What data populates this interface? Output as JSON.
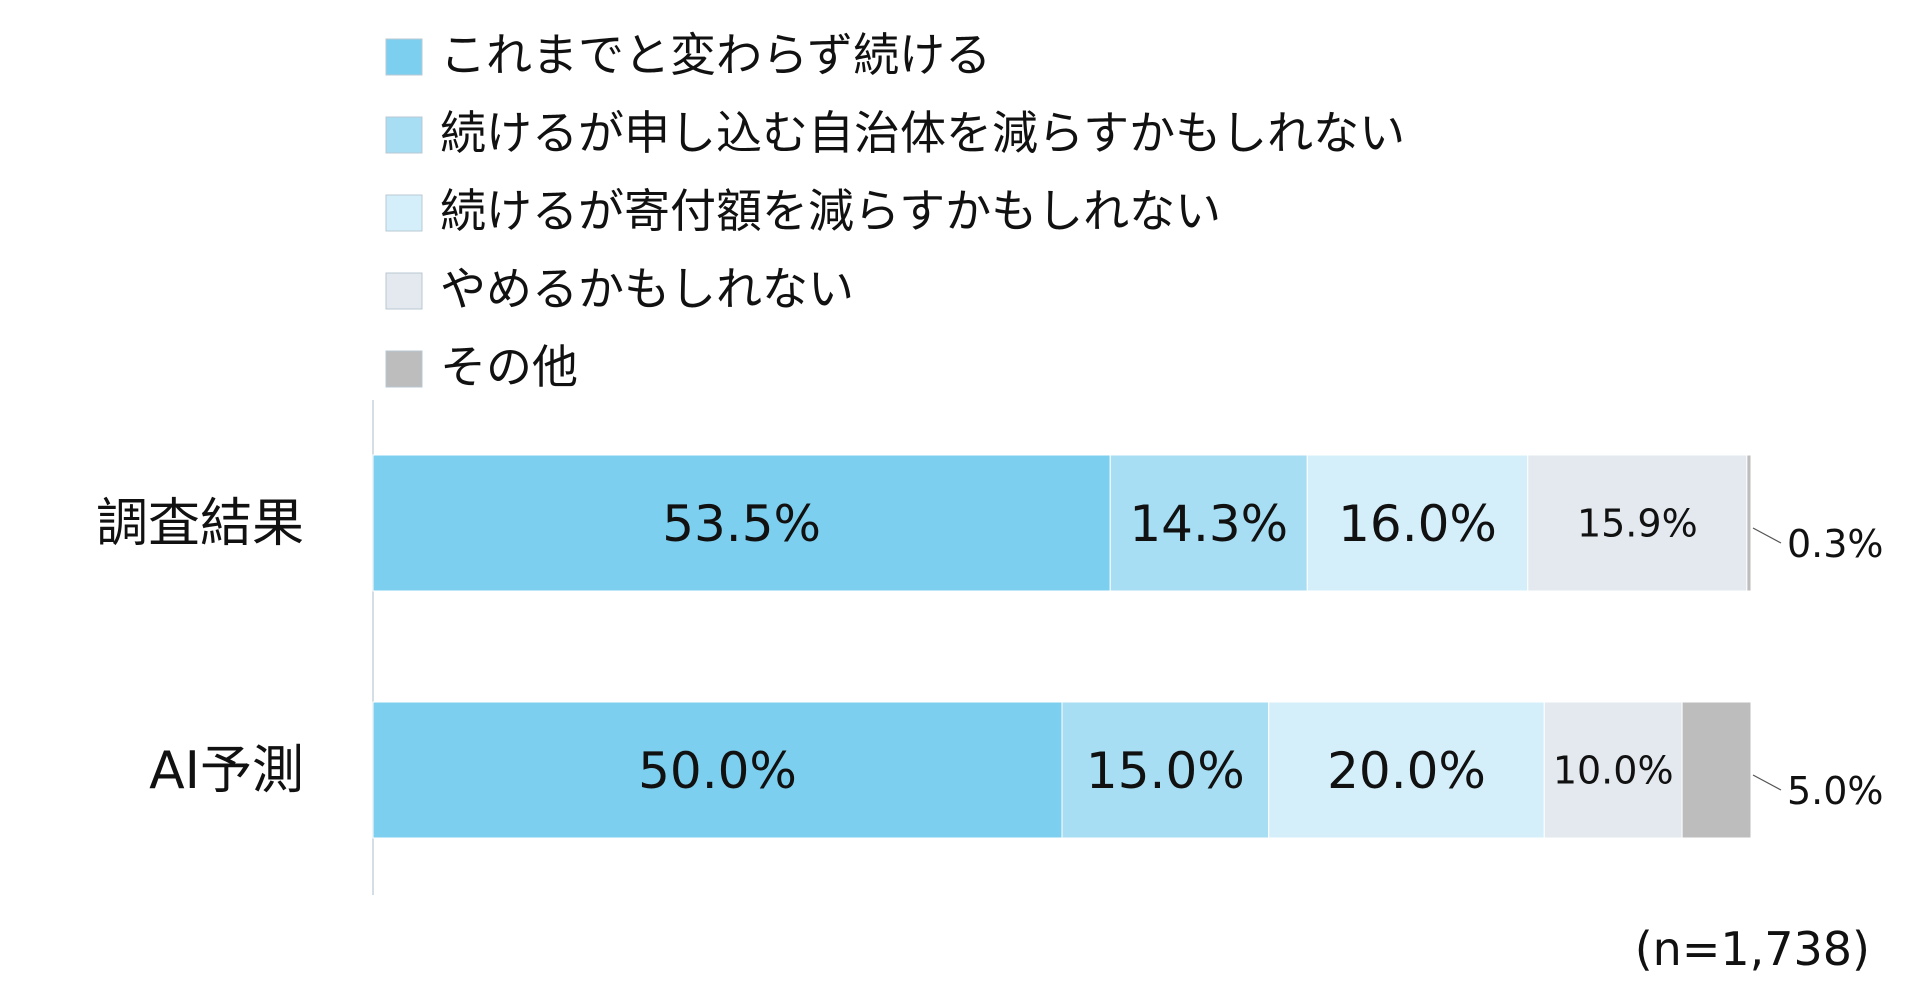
{
  "chart_data": {
    "type": "bar",
    "orientation": "horizontal",
    "stacked": true,
    "percent": true,
    "categories": [
      "調査結果",
      "AI予測"
    ],
    "series": [
      {
        "name": "これまでと変わらず続ける",
        "color": "#7DCFEF",
        "values": [
          53.5,
          50.0
        ]
      },
      {
        "name": "続けるが申し込む自治体を減らすかもしれない",
        "color": "#A7DEF3",
        "values": [
          14.3,
          15.0
        ]
      },
      {
        "name": "続けるが寄付額を減らすかもしれない",
        "color": "#D5EFFA",
        "values": [
          16.0,
          20.0
        ]
      },
      {
        "name": "やめるかもしれない",
        "color": "#E3E9EE",
        "values": [
          15.9,
          10.0
        ]
      },
      {
        "name": "その他",
        "color": "#BDBDBD",
        "values": [
          0.3,
          5.0
        ]
      }
    ],
    "data_labels": [
      [
        "53.5%",
        "14.3%",
        "16.0%",
        "15.9%",
        "0.3%"
      ],
      [
        "50.0%",
        "15.0%",
        "20.0%",
        "10.0%",
        "5.0%"
      ]
    ],
    "xlim": [
      0,
      100
    ],
    "legend_position": "top",
    "grid": false,
    "note": "(n=1,738)"
  }
}
